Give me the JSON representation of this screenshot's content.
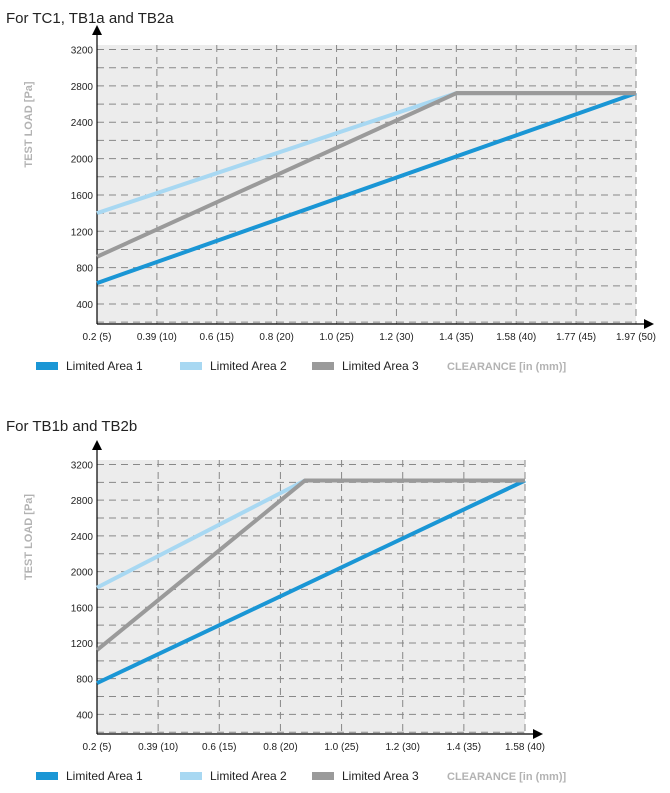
{
  "chart_data": [
    {
      "type": "line",
      "title": "For TC1, TB1a and TB2a",
      "ylabel": "TEST LOAD [Pa]",
      "xlabel": "CLEARANCE [in (mm)]",
      "xticks": [
        "0.2 (5)",
        "0.39 (10)",
        "0.6 (15)",
        "0.8 (20)",
        "1.0 (25)",
        "1.2 (30)",
        "1.4 (35)",
        "1.58 (40)",
        "1.77 (45)",
        "1.97 (50)"
      ],
      "xlim": [
        5,
        50
      ],
      "yticks": [
        400,
        800,
        1200,
        1600,
        2000,
        2400,
        2800,
        3200
      ],
      "ylim": [
        180,
        3250
      ],
      "grid": true,
      "series": [
        {
          "name": "Limited Area 1",
          "color": "#1a96d5",
          "points": [
            [
              5,
              630
            ],
            [
              50,
              2720
            ]
          ]
        },
        {
          "name": "Limited Area 2",
          "color": "#a8d8f2",
          "points": [
            [
              5,
              1400
            ],
            [
              35,
              2720
            ],
            [
              50,
              2720
            ]
          ]
        },
        {
          "name": "Limited Area 3",
          "color": "#9a9a9a",
          "points": [
            [
              5,
              920
            ],
            [
              35,
              2720
            ],
            [
              50,
              2720
            ]
          ]
        }
      ]
    },
    {
      "type": "line",
      "title": "For TB1b and TB2b",
      "ylabel": "TEST LOAD [Pa]",
      "xlabel": "CLEARANCE [in (mm)]",
      "xticks": [
        "0.2 (5)",
        "0.39 (10)",
        "0.6 (15)",
        "0.8 (20)",
        "1.0 (25)",
        "1.2 (30)",
        "1.4 (35)",
        "1.58 (40)"
      ],
      "xlim": [
        5,
        40
      ],
      "yticks": [
        400,
        800,
        1200,
        1600,
        2000,
        2400,
        2800,
        3200
      ],
      "ylim": [
        180,
        3250
      ],
      "grid": true,
      "series": [
        {
          "name": "Limited Area 1",
          "color": "#1a96d5",
          "points": [
            [
              5,
              750
            ],
            [
              40,
              3020
            ]
          ]
        },
        {
          "name": "Limited Area 2",
          "color": "#a8d8f2",
          "points": [
            [
              5,
              1820
            ],
            [
              22,
              3020
            ],
            [
              40,
              3020
            ]
          ]
        },
        {
          "name": "Limited Area 3",
          "color": "#9a9a9a",
          "points": [
            [
              5,
              1120
            ],
            [
              22,
              3020
            ],
            [
              40,
              3020
            ]
          ]
        }
      ]
    }
  ]
}
